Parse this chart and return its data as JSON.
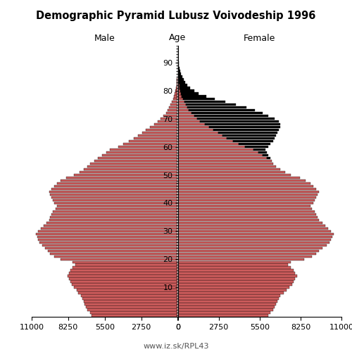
{
  "title": "Demographic Pyramid Lubusz Voivodeship 1996",
  "male_label": "Male",
  "female_label": "Female",
  "age_label": "Age",
  "footer": "www.iz.sk/RPL43",
  "xlim": 11000,
  "xticks_male": [
    11000,
    8250,
    5500,
    2750,
    0
  ],
  "xtick_labels_male": [
    "11000",
    "8250",
    "5500",
    "2750",
    "0"
  ],
  "xticks_female": [
    0,
    2750,
    5500,
    8250,
    11000
  ],
  "xtick_labels_female": [
    "0",
    "2750",
    "5500",
    "8250",
    "11000"
  ],
  "bar_color": "#CD5C5C",
  "bar_color_excess": "#000000",
  "edge_color": "#000000",
  "ytick_positions": [
    10,
    20,
    30,
    40,
    50,
    60,
    70,
    80,
    90
  ],
  "ages": [
    0,
    1,
    2,
    3,
    4,
    5,
    6,
    7,
    8,
    9,
    10,
    11,
    12,
    13,
    14,
    15,
    16,
    17,
    18,
    19,
    20,
    21,
    22,
    23,
    24,
    25,
    26,
    27,
    28,
    29,
    30,
    31,
    32,
    33,
    34,
    35,
    36,
    37,
    38,
    39,
    40,
    41,
    42,
    43,
    44,
    45,
    46,
    47,
    48,
    49,
    50,
    51,
    52,
    53,
    54,
    55,
    56,
    57,
    58,
    59,
    60,
    61,
    62,
    63,
    64,
    65,
    66,
    67,
    68,
    69,
    70,
    71,
    72,
    73,
    74,
    75,
    76,
    77,
    78,
    79,
    80,
    81,
    82,
    83,
    84,
    85,
    86,
    87,
    88,
    89,
    90,
    91,
    92,
    93,
    94,
    95
  ],
  "male": [
    6500,
    6600,
    6800,
    6900,
    7000,
    7100,
    7200,
    7300,
    7500,
    7600,
    7800,
    8000,
    8100,
    8200,
    8300,
    8200,
    8100,
    7900,
    7700,
    7900,
    8800,
    9300,
    9600,
    9800,
    10000,
    10200,
    10400,
    10500,
    10600,
    10700,
    10500,
    10300,
    10100,
    9900,
    9700,
    9600,
    9500,
    9400,
    9200,
    9100,
    9300,
    9400,
    9500,
    9600,
    9700,
    9500,
    9300,
    9100,
    8800,
    8400,
    7800,
    7400,
    7100,
    6800,
    6600,
    6300,
    6000,
    5700,
    5400,
    5100,
    4500,
    4100,
    3700,
    3300,
    3000,
    2700,
    2400,
    2100,
    1800,
    1500,
    1300,
    1100,
    900,
    750,
    650,
    550,
    450,
    350,
    280,
    220,
    170,
    130,
    100,
    80,
    60,
    45,
    35,
    25,
    18,
    12,
    8,
    5,
    3,
    2,
    1,
    1
  ],
  "female": [
    6100,
    6200,
    6400,
    6500,
    6600,
    6700,
    6800,
    6900,
    7100,
    7300,
    7500,
    7700,
    7800,
    7900,
    8000,
    7900,
    7800,
    7600,
    7400,
    7600,
    8500,
    9000,
    9300,
    9500,
    9700,
    10000,
    10200,
    10300,
    10400,
    10500,
    10300,
    10100,
    9900,
    9700,
    9500,
    9400,
    9300,
    9200,
    9000,
    8900,
    9100,
    9200,
    9300,
    9400,
    9500,
    9300,
    9100,
    8900,
    8600,
    8200,
    7600,
    7200,
    6900,
    6600,
    6400,
    6300,
    6200,
    6100,
    6000,
    5900,
    6100,
    6200,
    6400,
    6500,
    6600,
    6700,
    6800,
    6900,
    6900,
    6800,
    6500,
    6100,
    5700,
    5200,
    4600,
    3900,
    3200,
    2500,
    1900,
    1400,
    1100,
    850,
    660,
    510,
    390,
    290,
    220,
    160,
    110,
    75,
    50,
    30,
    18,
    10,
    6,
    3
  ]
}
